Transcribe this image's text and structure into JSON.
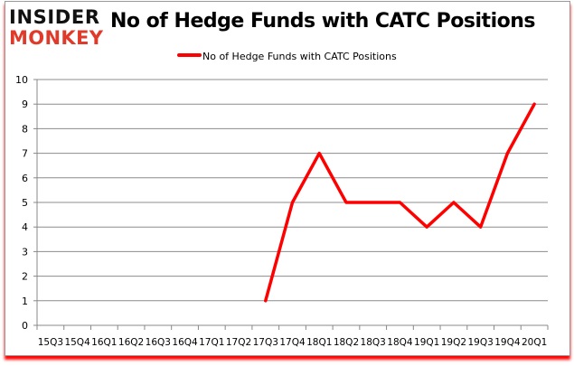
{
  "logo": {
    "line1": "INSIDER",
    "line2": "MONKEY"
  },
  "chart_data": {
    "type": "line",
    "title": "No of Hedge Funds with CATC Positions",
    "categories": [
      "15Q3",
      "15Q4",
      "16Q1",
      "16Q2",
      "16Q3",
      "16Q4",
      "17Q1",
      "17Q2",
      "17Q3",
      "17Q4",
      "18Q1",
      "18Q2",
      "18Q3",
      "18Q4",
      "19Q1",
      "19Q2",
      "19Q3",
      "19Q4",
      "20Q1"
    ],
    "series": [
      {
        "name": "No of Hedge Funds with CATC Positions",
        "color": "#ff0000",
        "values": [
          null,
          null,
          null,
          null,
          null,
          null,
          null,
          null,
          1,
          5,
          7,
          5,
          5,
          5,
          4,
          5,
          4,
          7,
          9
        ]
      }
    ],
    "ylim": [
      0,
      10
    ],
    "yticks": [
      0,
      1,
      2,
      3,
      4,
      5,
      6,
      7,
      8,
      9,
      10
    ],
    "grid": true,
    "legend": "top-center"
  }
}
